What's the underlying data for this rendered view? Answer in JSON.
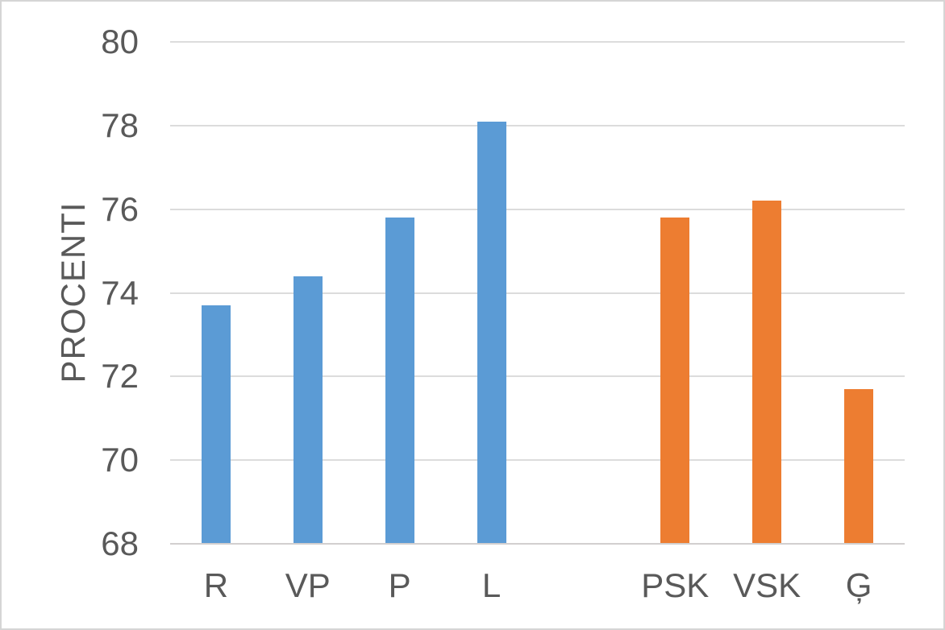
{
  "chart_data": {
    "type": "bar",
    "title": "",
    "xlabel": "",
    "ylabel": "PROCENTI",
    "categories": [
      "R",
      "VP",
      "P",
      "L",
      "",
      "PSK",
      "VSK",
      "Ģ"
    ],
    "values": [
      73.7,
      74.4,
      75.8,
      78.1,
      null,
      75.8,
      76.2,
      71.7
    ],
    "bar_colors": [
      "#5B9BD5",
      "#5B9BD5",
      "#5B9BD5",
      "#5B9BD5",
      null,
      "#ED7D31",
      "#ED7D31",
      "#ED7D31"
    ],
    "ylim": [
      68,
      80
    ],
    "yticks": [
      68,
      70,
      72,
      74,
      76,
      78,
      80
    ],
    "grid": true,
    "legend_position": "none"
  },
  "colors": {
    "blue_bar": "#5B9BD5",
    "orange_bar": "#ED7D31",
    "text": "#595959",
    "gridline": "#DCDCDC",
    "axis_line": "#D2CFCF",
    "background": "#FFFFFF",
    "border": "#D5D5D5"
  }
}
